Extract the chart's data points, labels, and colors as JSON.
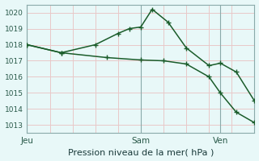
{
  "xlabel": "Pression niveau de la mer( hPa )",
  "ylim": [
    1012.5,
    1020.5
  ],
  "xlim": [
    0,
    10
  ],
  "bg_color": "#e8f8f8",
  "grid_color_h": "#e8c8c8",
  "grid_color_v": "#e8c8c8",
  "line_color": "#1a5c2a",
  "line1_x": [
    0,
    1.5,
    3.0,
    4.0,
    4.5,
    5.0,
    5.5,
    6.2,
    7.0,
    8.0,
    8.5,
    9.2,
    10.0
  ],
  "line1_y": [
    1018.0,
    1017.5,
    1018.0,
    1018.7,
    1019.0,
    1019.1,
    1020.2,
    1019.4,
    1017.8,
    1016.7,
    1016.85,
    1016.3,
    1014.5
  ],
  "line2_x": [
    0,
    1.5,
    3.5,
    5.0,
    6.0,
    7.0,
    8.0,
    8.5,
    9.2,
    10.0
  ],
  "line2_y": [
    1018.0,
    1017.5,
    1017.2,
    1017.05,
    1017.0,
    1016.8,
    1016.0,
    1015.0,
    1013.8,
    1013.15
  ],
  "yticks": [
    1013,
    1014,
    1015,
    1016,
    1017,
    1018,
    1019,
    1020
  ],
  "xtick_positions": [
    0.0,
    5.0,
    8.5
  ],
  "xtick_labels": [
    "Jeu",
    "Sam",
    "Ven"
  ],
  "vline_positions": [
    0.0,
    5.0,
    8.5
  ],
  "vline_color": "#8aaaaa",
  "spine_color": "#8aaaaa",
  "tick_color": "#2a5a4a",
  "xlabel_color": "#1a3a3a",
  "xlabel_fontsize": 8,
  "ytick_fontsize": 6.5,
  "xtick_fontsize": 7.5
}
